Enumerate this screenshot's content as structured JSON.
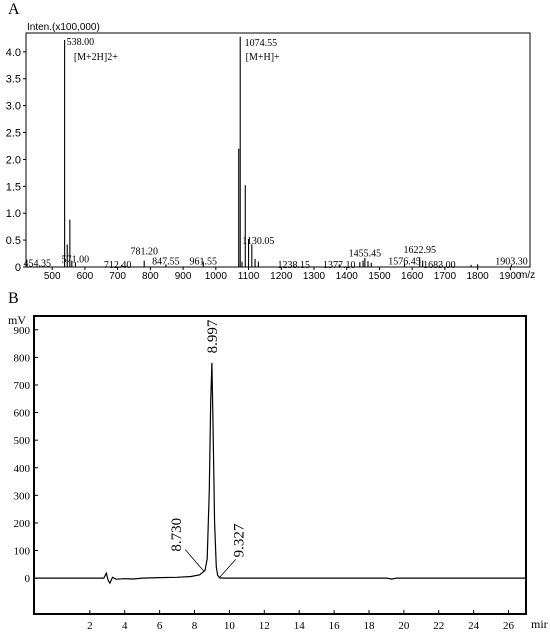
{
  "panel_labels": {
    "a": "A",
    "b": "B"
  },
  "chart_data": [
    {
      "type": "bar",
      "title": "",
      "ylabel": "Inten.(x100,000)",
      "xlabel": "m/z",
      "xlim": [
        420,
        1960
      ],
      "ylim": [
        0,
        4.35
      ],
      "x_ticks": [
        500,
        600,
        700,
        800,
        900,
        1000,
        1100,
        1200,
        1300,
        1400,
        1500,
        1600,
        1700,
        1800,
        1900
      ],
      "x_tick_labels": [
        "500",
        "600",
        "700",
        "800",
        "900",
        "1000",
        "1100",
        "1200",
        "1300",
        "1400",
        "1500",
        "1600",
        "1700",
        "1800",
        "1900"
      ],
      "y_ticks": [
        0,
        0.5,
        1.0,
        1.5,
        2.0,
        2.5,
        3.0,
        3.5,
        4.0
      ],
      "y_tick_labels": [
        "0",
        "0.5",
        "1.0",
        "1.5",
        "2.0",
        "2.5",
        "3.0",
        "3.5",
        "4.0"
      ],
      "peaks": [
        {
          "mz": 538.0,
          "intensity": 4.22
        },
        {
          "mz": 546.0,
          "intensity": 0.42
        },
        {
          "mz": 554.0,
          "intensity": 0.88
        },
        {
          "mz": 560.0,
          "intensity": 0.12
        },
        {
          "mz": 571.0,
          "intensity": 0.08
        },
        {
          "mz": 712.4,
          "intensity": 0.04
        },
        {
          "mz": 781.2,
          "intensity": 0.12
        },
        {
          "mz": 847.55,
          "intensity": 0.05
        },
        {
          "mz": 961.55,
          "intensity": 0.1
        },
        {
          "mz": 1074.55,
          "intensity": 4.28
        },
        {
          "mz": 1070.0,
          "intensity": 2.2
        },
        {
          "mz": 1080.0,
          "intensity": 0.1
        },
        {
          "mz": 1090.0,
          "intensity": 1.52
        },
        {
          "mz": 1100.0,
          "intensity": 0.52
        },
        {
          "mz": 1110.0,
          "intensity": 0.42
        },
        {
          "mz": 1120.0,
          "intensity": 0.15
        },
        {
          "mz": 1130.05,
          "intensity": 0.1
        },
        {
          "mz": 1238.15,
          "intensity": 0.03
        },
        {
          "mz": 1377.1,
          "intensity": 0.05
        },
        {
          "mz": 1440.0,
          "intensity": 0.09
        },
        {
          "mz": 1450.0,
          "intensity": 0.12
        },
        {
          "mz": 1455.45,
          "intensity": 0.17
        },
        {
          "mz": 1465.0,
          "intensity": 0.11
        },
        {
          "mz": 1475.0,
          "intensity": 0.08
        },
        {
          "mz": 1576.45,
          "intensity": 0.06
        },
        {
          "mz": 1622.95,
          "intensity": 0.18
        },
        {
          "mz": 1632.0,
          "intensity": 0.12
        },
        {
          "mz": 1683.0,
          "intensity": 0.03
        },
        {
          "mz": 1780.0,
          "intensity": 0.04
        },
        {
          "mz": 1800.0,
          "intensity": 0.05
        },
        {
          "mz": 1903.3,
          "intensity": 0.04
        }
      ],
      "peak_labels": [
        {
          "text": "538.00",
          "mz": 538.0,
          "y": 4.2
        },
        {
          "text": "[M+2H]2+",
          "mz": 560.0,
          "y": 3.92
        },
        {
          "text": "1074.55",
          "mz": 1082.0,
          "y": 4.18
        },
        {
          "text": "[M+H]+",
          "mz": 1085.0,
          "y": 3.92
        },
        {
          "text": "454.35",
          "mz": 454.35,
          "y": 0.08
        },
        {
          "text": "571.00",
          "mz": 571.0,
          "y": 0.16
        },
        {
          "text": "712.40",
          "mz": 700.0,
          "y": 0.06
        },
        {
          "text": "781.20",
          "mz": 781.2,
          "y": 0.31
        },
        {
          "text": "847.55",
          "mz": 847.55,
          "y": 0.12
        },
        {
          "text": "961.55",
          "mz": 961.55,
          "y": 0.12
        },
        {
          "text": "1130.05",
          "mz": 1130.05,
          "y": 0.5
        },
        {
          "text": "1238.15",
          "mz": 1238.15,
          "y": 0.06
        },
        {
          "text": "1377.10",
          "mz": 1377.1,
          "y": 0.06
        },
        {
          "text": "1455.45",
          "mz": 1455.45,
          "y": 0.27
        },
        {
          "text": "1576.45",
          "mz": 1576.45,
          "y": 0.12
        },
        {
          "text": "1622.95",
          "mz": 1622.95,
          "y": 0.33
        },
        {
          "text": "1683.00",
          "mz": 1683.0,
          "y": 0.06
        },
        {
          "text": "1903.30",
          "mz": 1903.3,
          "y": 0.12
        }
      ]
    },
    {
      "type": "line",
      "title": "",
      "ylabel": "mV",
      "xlabel": "mir",
      "xlim": [
        -1.2,
        27.0
      ],
      "ylim": [
        -130,
        950
      ],
      "x_ticks": [
        2,
        4,
        6,
        8,
        10,
        12,
        14,
        16,
        18,
        20,
        22,
        24,
        26
      ],
      "x_tick_labels": [
        "2",
        "4",
        "6",
        "8",
        "10",
        "12",
        "14",
        "16",
        "18",
        "20",
        "22",
        "24",
        "26"
      ],
      "y_ticks": [
        0,
        100,
        200,
        300,
        400,
        500,
        600,
        700,
        800,
        900
      ],
      "y_tick_labels": [
        "0",
        "100",
        "200",
        "300",
        "400",
        "500",
        "600",
        "700",
        "800",
        "900"
      ],
      "x": [
        -1.2,
        2.8,
        2.95,
        3.05,
        3.15,
        3.3,
        3.5,
        4.0,
        4.5,
        5.0,
        6.0,
        7.0,
        7.8,
        8.3,
        8.6,
        8.73,
        8.85,
        8.93,
        8.997,
        9.06,
        9.15,
        9.25,
        9.327,
        9.45,
        9.7,
        10.5,
        15.0,
        19.0,
        19.3,
        19.6,
        22.0,
        27.0
      ],
      "y": [
        0,
        0,
        18,
        -8,
        -18,
        3,
        -4,
        -2,
        -3,
        0,
        2,
        3,
        6,
        12,
        28,
        70,
        320,
        640,
        780,
        560,
        200,
        40,
        10,
        1,
        0,
        0,
        0,
        0,
        -3,
        0,
        0,
        0
      ],
      "annotations": [
        {
          "text": "8.997",
          "x": 8.997,
          "y": 800
        },
        {
          "text": "8.730",
          "x": 8.73,
          "y": 60
        },
        {
          "text": "9.327",
          "x": 9.327,
          "y": 10
        }
      ]
    }
  ]
}
